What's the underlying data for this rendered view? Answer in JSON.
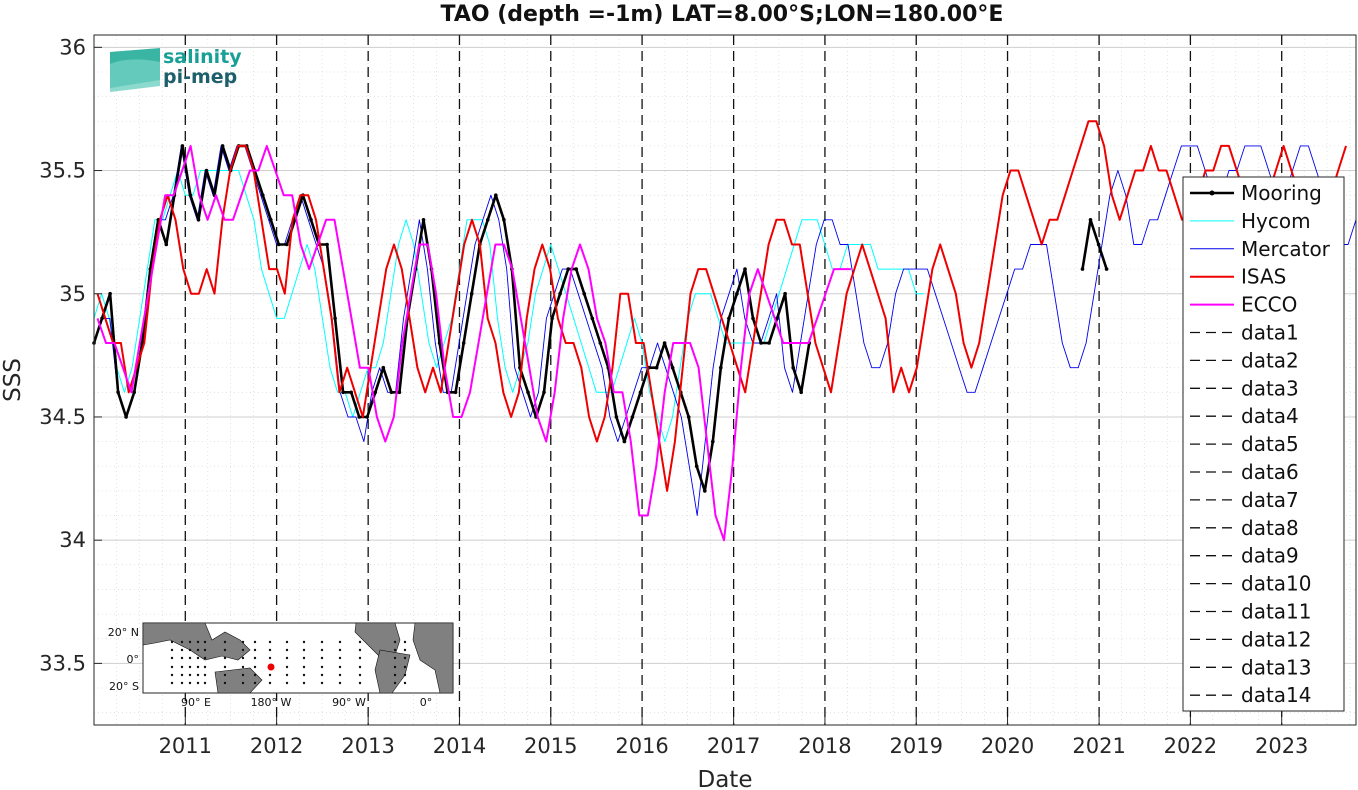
{
  "chart_data": {
    "type": "line",
    "title": "TAO (depth =-1m) LAT=8.00°S;LON=180.00°E",
    "xlabel": "Date",
    "ylabel": "SSS",
    "xlim": [
      "2010-01-01",
      "2023-10-25"
    ],
    "ylim": [
      33.25,
      36.05
    ],
    "yticks": [
      33.5,
      34,
      34.5,
      35,
      35.5,
      36
    ],
    "ytick_labels": [
      "33.5",
      "34",
      "34.5",
      "35",
      "35.5",
      "36"
    ],
    "xtick_labels": [
      "2011",
      "2012",
      "2013",
      "2014",
      "2015",
      "2016",
      "2017",
      "2018",
      "2019",
      "2020",
      "2021",
      "2022",
      "2023"
    ],
    "grid": "on",
    "legend_position": "right",
    "legend": [
      "Mooring",
      "Hycom",
      "Mercator",
      "ISAS",
      "ECCO",
      "data1",
      "data2",
      "data3",
      "data4",
      "data5",
      "data6",
      "data7",
      "data8",
      "data9",
      "data10",
      "data11",
      "data12",
      "data13",
      "data14"
    ],
    "series": [
      {
        "name": "Mooring",
        "color": "#000000",
        "style": "thick black line with point markers",
        "x_start": "2010-01-01",
        "x_end": "2021-01-31",
        "samples_per_year": 12,
        "values": [
          34.8,
          34.9,
          35.0,
          34.6,
          34.5,
          34.6,
          34.8,
          35.1,
          35.3,
          35.2,
          35.4,
          35.6,
          35.4,
          35.3,
          35.5,
          35.4,
          35.6,
          35.5,
          35.6,
          35.6,
          35.5,
          35.4,
          35.3,
          35.2,
          35.2,
          35.3,
          35.4,
          35.3,
          35.2,
          35.2,
          34.9,
          34.6,
          34.6,
          34.5,
          34.5,
          34.6,
          34.7,
          34.6,
          34.6,
          34.9,
          35.1,
          35.3,
          35.1,
          34.8,
          34.6,
          34.6,
          34.8,
          35.0,
          35.2,
          35.3,
          35.4,
          35.3,
          35.1,
          34.7,
          34.6,
          34.5,
          34.6,
          34.9,
          35.0,
          35.1,
          35.1,
          35.0,
          34.9,
          34.8,
          34.7,
          34.5,
          34.4,
          34.5,
          34.6,
          34.7,
          34.7,
          34.8,
          34.7,
          34.6,
          34.5,
          34.3,
          34.2,
          34.4,
          34.7,
          34.9,
          35.0,
          35.1,
          34.9,
          34.8,
          34.8,
          34.9,
          35.0,
          34.7,
          34.6,
          34.8,
          null,
          null,
          null,
          null,
          null,
          null,
          null,
          null,
          null,
          null,
          null,
          null,
          null,
          null,
          null,
          null,
          null,
          null,
          null,
          null,
          null,
          null,
          null,
          null,
          null,
          null,
          null,
          null,
          null,
          null,
          null,
          null,
          null,
          35.1,
          35.3,
          35.2,
          35.1
        ]
      },
      {
        "name": "Hycom",
        "color": "#00ffff",
        "style": "thin cyan line",
        "x_start": "2010-01-01",
        "x_end": "2019-01-31",
        "samples_per_year": 12,
        "values": [
          34.9,
          35.0,
          34.9,
          34.7,
          34.6,
          34.7,
          34.9,
          35.1,
          35.3,
          35.3,
          35.4,
          35.5,
          35.4,
          35.4,
          35.5,
          35.5,
          35.5,
          35.5,
          35.5,
          35.5,
          35.4,
          35.3,
          35.1,
          35.0,
          34.9,
          34.9,
          35.0,
          35.1,
          35.2,
          35.1,
          34.9,
          34.7,
          34.6,
          34.6,
          34.5,
          34.6,
          34.7,
          34.7,
          34.8,
          35.0,
          35.2,
          35.3,
          35.2,
          35.0,
          34.8,
          34.7,
          34.8,
          34.9,
          35.1,
          35.3,
          35.3,
          35.3,
          35.2,
          34.9,
          34.7,
          34.6,
          34.7,
          34.8,
          35.0,
          35.1,
          35.2,
          35.1,
          35.0,
          34.9,
          34.8,
          34.7,
          34.6,
          34.6,
          34.6,
          34.7,
          34.8,
          34.9,
          34.8,
          34.6,
          34.5,
          34.4,
          34.5,
          34.7,
          34.9,
          35.0,
          35.0,
          35.0,
          34.9,
          34.8,
          34.8,
          34.8,
          34.8,
          34.8,
          34.8,
          34.9,
          35.0,
          35.1,
          35.2,
          35.3,
          35.3,
          35.3,
          35.2,
          35.1,
          35.1,
          35.2,
          35.2,
          35.2,
          35.2,
          35.1,
          35.1,
          35.1,
          35.1,
          35.1,
          35.0,
          35.0
        ]
      },
      {
        "name": "Mercator",
        "color": "#0000ee",
        "style": "thin blue line",
        "x_start": "2010-01-01",
        "x_end": "2023-10-25",
        "samples_per_year": 12,
        "values": [
          34.8,
          34.9,
          34.9,
          34.6,
          34.5,
          34.6,
          34.8,
          35.1,
          35.3,
          35.3,
          35.4,
          35.6,
          35.4,
          35.3,
          35.5,
          35.4,
          35.6,
          35.5,
          35.6,
          35.6,
          35.5,
          35.4,
          35.3,
          35.2,
          35.2,
          35.3,
          35.4,
          35.3,
          35.2,
          35.1,
          34.9,
          34.6,
          34.5,
          34.5,
          34.4,
          34.6,
          34.7,
          34.6,
          34.6,
          34.9,
          35.1,
          35.3,
          35.1,
          34.8,
          34.6,
          34.6,
          34.8,
          35.0,
          35.2,
          35.3,
          35.4,
          35.3,
          35.1,
          34.7,
          34.6,
          34.5,
          34.6,
          34.9,
          35.0,
          35.1,
          35.1,
          35.0,
          34.9,
          34.8,
          34.7,
          34.5,
          34.4,
          34.5,
          34.6,
          34.7,
          34.7,
          34.8,
          34.7,
          34.6,
          34.5,
          34.3,
          34.1,
          34.4,
          34.7,
          34.9,
          35.0,
          35.1,
          34.9,
          34.8,
          34.8,
          34.9,
          35.0,
          34.7,
          34.6,
          34.8,
          35.0,
          35.2,
          35.3,
          35.3,
          35.2,
          35.2,
          35.0,
          34.8,
          34.7,
          34.7,
          34.8,
          35.0,
          35.1,
          35.1,
          35.1,
          35.1,
          35.0,
          34.9,
          34.8,
          34.7,
          34.6,
          34.6,
          34.7,
          34.8,
          34.9,
          35.0,
          35.1,
          35.1,
          35.2,
          35.2,
          35.2,
          35.0,
          34.8,
          34.7,
          34.7,
          34.8,
          35.0,
          35.2,
          35.4,
          35.5,
          35.4,
          35.2,
          35.2,
          35.3,
          35.3,
          35.4,
          35.5,
          35.6,
          35.6,
          35.6,
          35.5,
          35.4,
          35.4,
          35.5,
          35.5,
          35.6,
          35.6,
          35.6,
          35.5,
          35.4,
          35.4,
          35.5,
          35.6,
          35.6,
          35.5,
          35.4,
          35.3,
          35.2,
          35.2,
          35.3
        ]
      },
      {
        "name": "ISAS",
        "color": "#ee0000",
        "style": "red line",
        "x_start": "2010-01-15",
        "x_end": "2023-09-15",
        "samples_per_year": 12,
        "values": [
          35.0,
          34.9,
          34.8,
          34.8,
          34.6,
          34.7,
          34.8,
          35.1,
          35.3,
          35.4,
          35.3,
          35.1,
          35.0,
          35.0,
          35.1,
          35.0,
          35.3,
          35.5,
          35.6,
          35.6,
          35.5,
          35.3,
          35.1,
          35.1,
          35.0,
          35.3,
          35.4,
          35.4,
          35.3,
          35.1,
          34.9,
          34.6,
          34.7,
          34.6,
          34.5,
          34.7,
          34.9,
          35.1,
          35.2,
          35.1,
          34.9,
          34.7,
          34.6,
          34.7,
          34.6,
          34.8,
          35.0,
          35.2,
          35.3,
          35.2,
          34.9,
          34.8,
          34.6,
          34.5,
          34.6,
          34.9,
          35.1,
          35.2,
          35.1,
          34.9,
          34.8,
          34.8,
          34.7,
          34.5,
          34.4,
          34.5,
          34.7,
          35.0,
          35.0,
          34.8,
          34.8,
          34.6,
          34.4,
          34.2,
          34.4,
          34.7,
          35.0,
          35.1,
          35.1,
          35.0,
          34.9,
          34.8,
          34.7,
          34.6,
          34.8,
          35.0,
          35.2,
          35.3,
          35.3,
          35.2,
          35.2,
          35.0,
          34.8,
          34.7,
          34.6,
          34.8,
          35.0,
          35.1,
          35.2,
          35.1,
          35.0,
          34.9,
          34.6,
          34.7,
          34.6,
          34.7,
          34.9,
          35.1,
          35.2,
          35.1,
          35.0,
          34.8,
          34.7,
          34.8,
          35.0,
          35.2,
          35.4,
          35.5,
          35.5,
          35.4,
          35.3,
          35.2,
          35.3,
          35.3,
          35.4,
          35.5,
          35.6,
          35.7,
          35.7,
          35.6,
          35.4,
          35.3,
          35.4,
          35.5,
          35.5,
          35.6,
          35.5,
          35.5,
          35.4,
          35.3,
          35.3,
          35.4,
          35.5,
          35.5,
          35.6,
          35.6,
          35.5,
          35.4,
          35.3,
          35.3,
          35.4,
          35.5,
          35.6,
          35.5,
          35.4,
          35.3,
          35.3,
          35.3,
          35.4,
          35.5,
          35.6
        ]
      },
      {
        "name": "ECCO",
        "color": "#ff00ff",
        "style": "magenta line",
        "x_start": "2010-01-15",
        "x_end": "2018-04-15",
        "samples_per_year": 12,
        "values": [
          34.9,
          34.8,
          34.8,
          34.7,
          34.6,
          34.8,
          35.0,
          35.2,
          35.4,
          35.4,
          35.5,
          35.6,
          35.4,
          35.3,
          35.4,
          35.3,
          35.3,
          35.4,
          35.5,
          35.5,
          35.6,
          35.5,
          35.4,
          35.4,
          35.2,
          35.1,
          35.2,
          35.3,
          35.3,
          35.1,
          34.9,
          34.7,
          34.7,
          34.5,
          34.4,
          34.5,
          34.8,
          35.0,
          35.2,
          35.2,
          35.0,
          34.7,
          34.5,
          34.5,
          34.6,
          34.8,
          35.0,
          35.2,
          35.2,
          35.1,
          34.9,
          34.7,
          34.5,
          34.4,
          34.6,
          34.9,
          35.1,
          35.2,
          35.1,
          34.9,
          34.8,
          34.6,
          34.6,
          34.4,
          34.1,
          34.1,
          34.3,
          34.6,
          34.8,
          34.8,
          34.8,
          34.7,
          34.4,
          34.1,
          34.0,
          34.3,
          34.7,
          35.0,
          35.1,
          35.0,
          34.9,
          34.8,
          34.8,
          34.8,
          34.8,
          34.9,
          35.0,
          35.1,
          35.1,
          35.1
        ]
      }
    ],
    "vertical_dashed_lines_x": [
      "2011-01-01",
      "2012-01-01",
      "2013-01-01",
      "2014-01-01",
      "2015-01-01",
      "2016-01-01",
      "2017-01-01",
      "2018-01-01",
      "2019-01-01",
      "2020-01-01",
      "2021-01-01",
      "2022-01-01",
      "2023-01-01"
    ]
  },
  "logo": {
    "line1": "salinity",
    "line2": "pi-mep"
  },
  "inset_map": {
    "ylabels": [
      "20° N",
      "0°",
      "20° S"
    ],
    "xlabels": [
      "90° E",
      "180° W",
      "90° W",
      "0°"
    ],
    "marker": "red dot at 8°S 180°E"
  },
  "colors": {
    "mooring": "#000000",
    "hycom": "#00ffff",
    "mercator": "#0000ee",
    "isas": "#ee0000",
    "ecco": "#ff00ff",
    "grid": "#d8d8d8"
  }
}
